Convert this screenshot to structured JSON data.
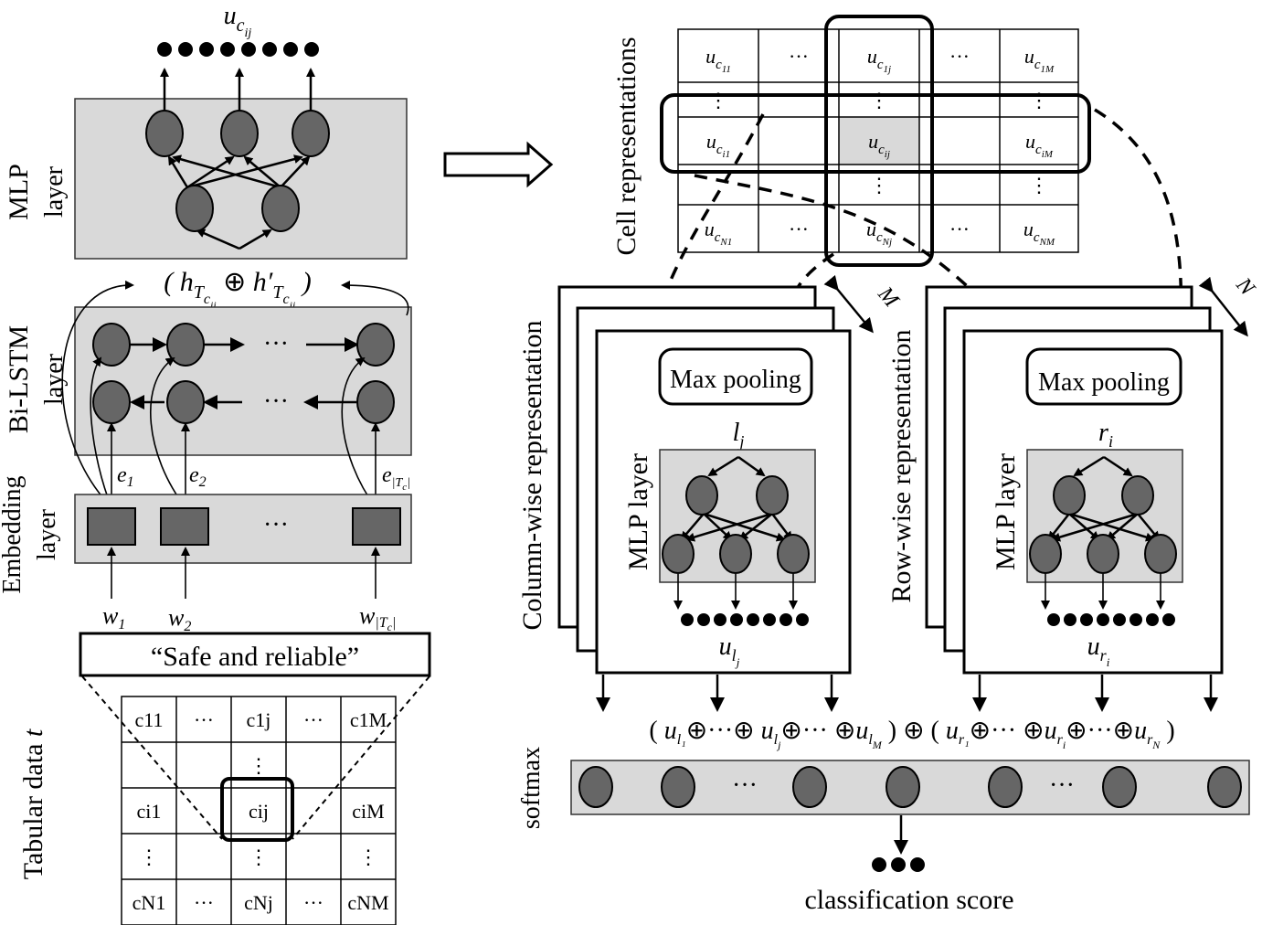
{
  "left": {
    "top_output": "u_{c_ij}",
    "mlp_label_1": "MLP",
    "mlp_label_2": "layer",
    "concat": "( h_{T_{c_ij}} ⊕ h'_{T_{c_ij}} )",
    "bilstm_label_1": "Bi-LSTM",
    "bilstm_label_2": "layer",
    "embedding_label_1": "Embedding",
    "embedding_label_2": "layer",
    "ellipsis": "···",
    "e_labels": [
      "e₁",
      "e₂",
      "e|T_c|"
    ],
    "w_labels": [
      "w₁",
      "w₂",
      "w|T_c|"
    ],
    "phrase": "“Safe and reliable”",
    "table_label": "Tabular data t",
    "table_cells": [
      [
        "c11",
        "···",
        "c1j",
        "···",
        "c1M"
      ],
      [
        "",
        "",
        "⋮",
        "",
        ""
      ],
      [
        "ci1",
        "",
        "cij",
        "",
        "ciM"
      ],
      [
        "⋮",
        "",
        "⋮",
        "",
        "⋮"
      ],
      [
        "cN1",
        "···",
        "cNj",
        "···",
        "cNM"
      ]
    ]
  },
  "right": {
    "cell_repr_label": "Cell representations",
    "cell_grid": [
      [
        "u_{c11}",
        "···",
        "u_{c1j}",
        "···",
        "u_{c1M}"
      ],
      [
        "⋮",
        "",
        "⋮",
        "",
        "⋮"
      ],
      [
        "u_{ci1}",
        "",
        "u_{cij}",
        "",
        "u_{ciM}"
      ],
      [
        "",
        "",
        "⋮",
        "",
        "⋮"
      ],
      [
        "u_{cN1}",
        "···",
        "u_{cNj}",
        "···",
        "u_{cNM}"
      ]
    ],
    "m_label": "M",
    "n_label": "N",
    "col_repr_label": "Column-wise representation",
    "row_repr_label": "Row-wise representation",
    "max_pooling": "Max pooling",
    "mlp_layer": "MLP layer",
    "col_top_var": "l_j",
    "row_top_var": "r_i",
    "col_out_var": "u_{l_j}",
    "row_out_var": "u_{r_i}",
    "concat_expr": "( u_{l1}⊕···⊕ u_{lj}⊕···⊕u_{lM} ) ⊕ ( u_{r1}⊕··· ⊕u_{ri}⊕···⊕u_{rN} )",
    "softmax_label": "softmax",
    "classification": "classification score",
    "ellipsis": "···"
  }
}
